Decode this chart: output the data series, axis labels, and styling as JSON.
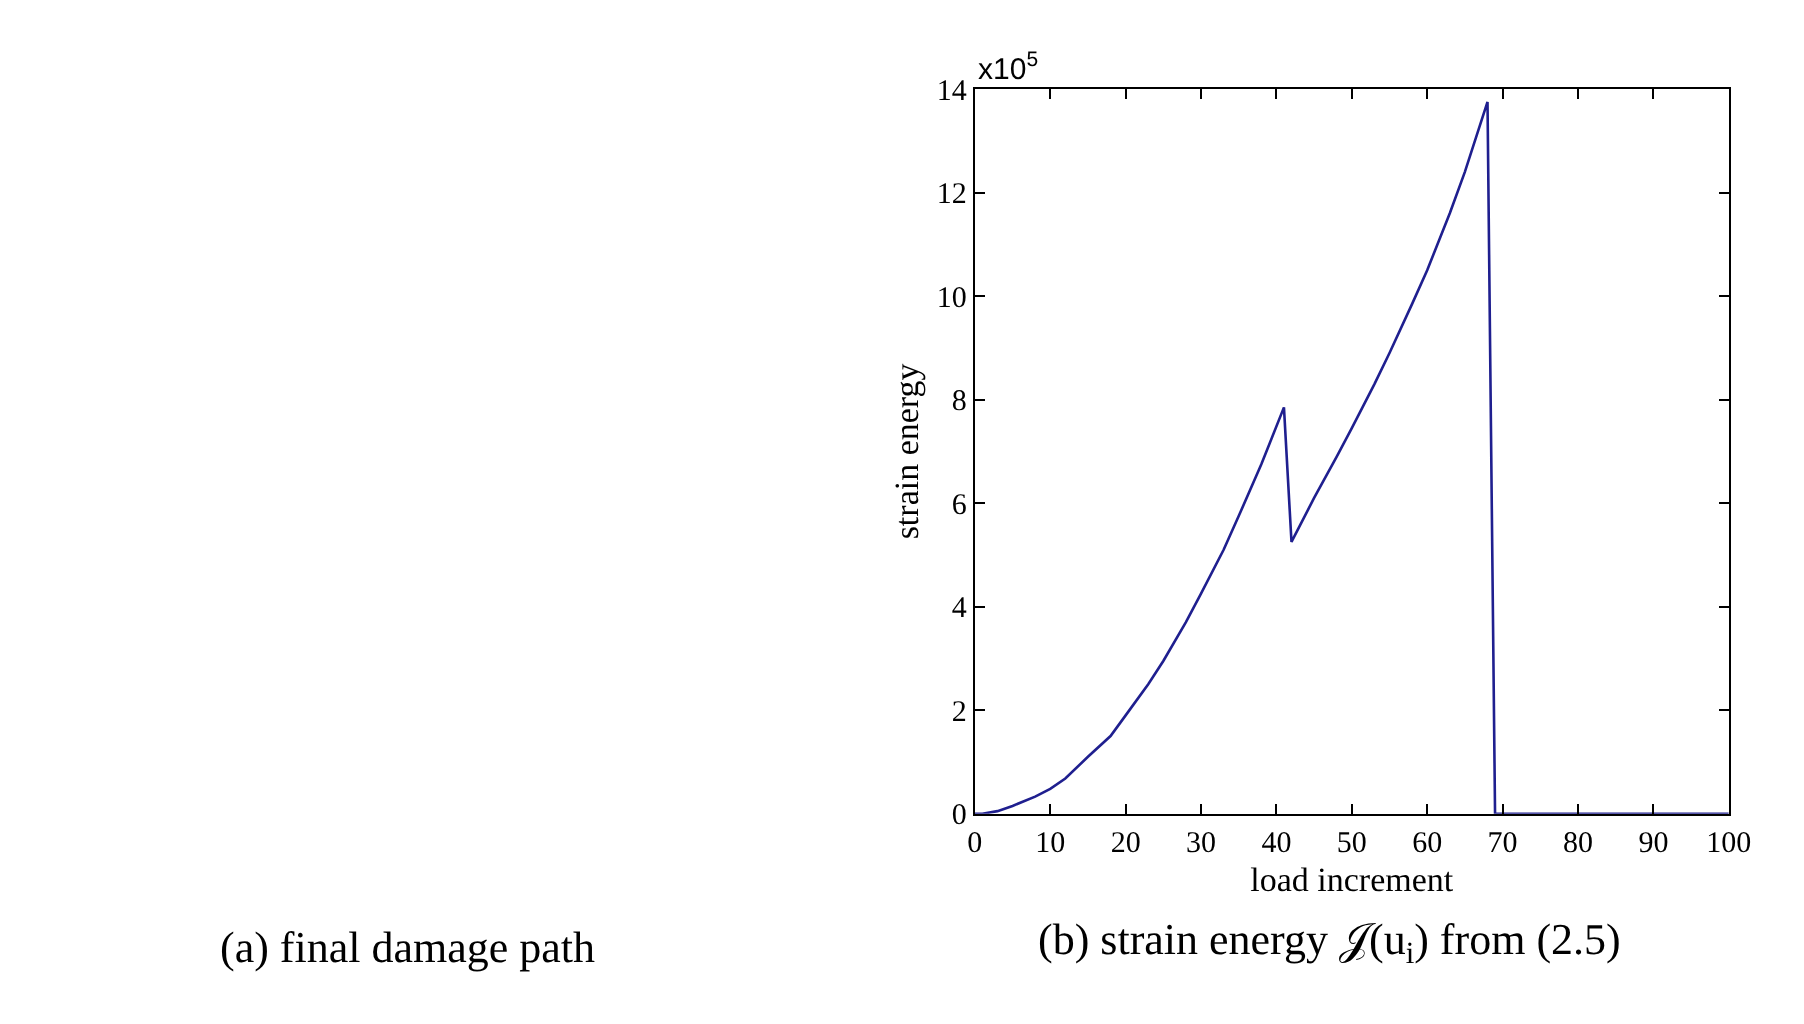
{
  "chart_data": {
    "type": "line",
    "xlabel": "load increment",
    "ylabel": "strain energy",
    "annotations": [
      "x10$^{5}$",
      "(a) final damage path",
      "(b) strain energy 𝒥(u$_{i}$) from (2.5)"
    ],
    "x": [
      0,
      1,
      3,
      5,
      8,
      10,
      12,
      15,
      18,
      20,
      23,
      25,
      28,
      30,
      33,
      35,
      38,
      41,
      42,
      45,
      48,
      50,
      53,
      55,
      58,
      60,
      63,
      65,
      68,
      69,
      75,
      80,
      90,
      100
    ],
    "series": [
      {
        "color": "#1f1f8f",
        "values": [
          0,
          0,
          0.05,
          0.15,
          0.33,
          0.48,
          0.68,
          1.1,
          1.5,
          1.9,
          2.5,
          2.95,
          3.7,
          4.25,
          5.1,
          5.75,
          6.75,
          7.85,
          5.25,
          6.1,
          6.9,
          7.45,
          8.3,
          8.9,
          9.85,
          10.5,
          11.6,
          12.4,
          13.75,
          0,
          0,
          0,
          0,
          0
        ]
      }
    ],
    "xlim": [
      0,
      100
    ],
    "xticks": [
      0,
      10,
      20,
      30,
      40,
      50,
      60,
      70,
      80,
      90,
      100
    ],
    "ylim": [
      0,
      14
    ],
    "yticks": [
      0,
      2,
      4,
      6,
      8,
      10,
      12,
      14
    ],
    "marker": "none",
    "line_style": "solid"
  }
}
